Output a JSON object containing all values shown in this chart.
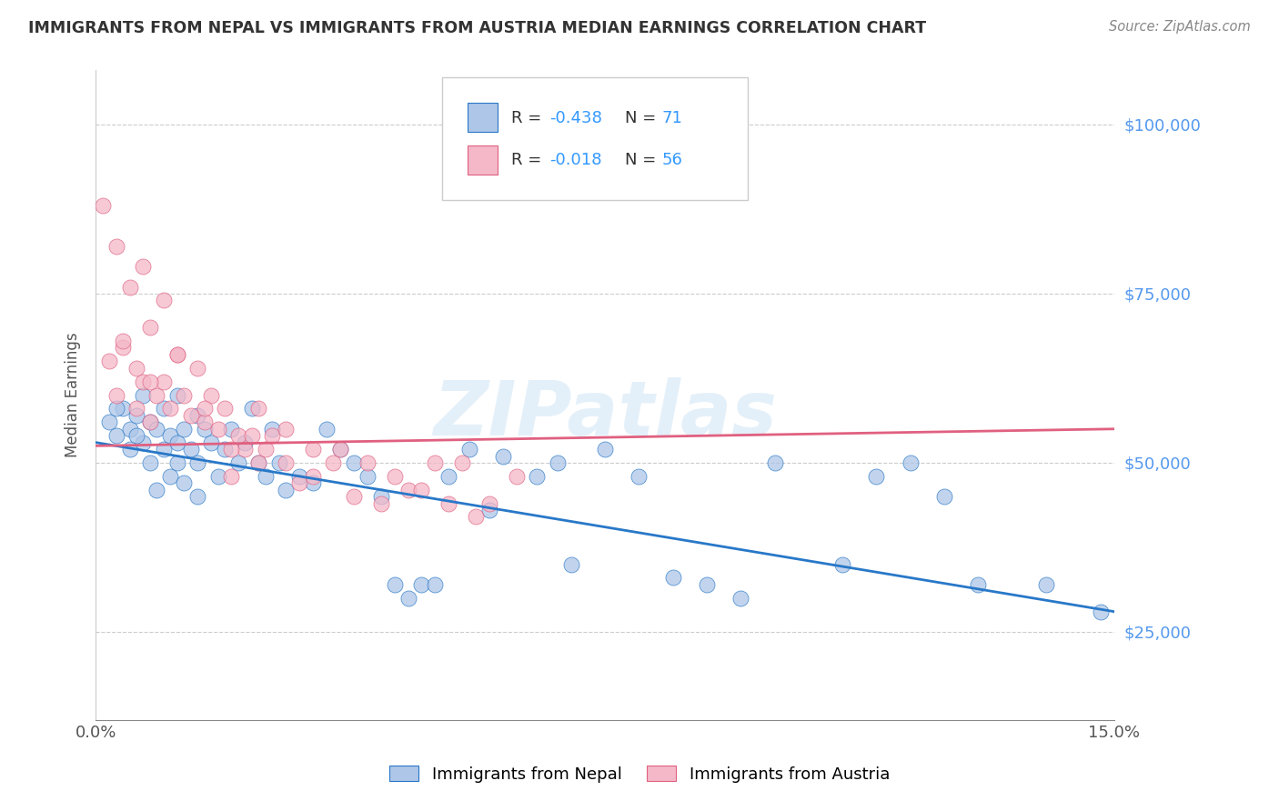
{
  "title": "IMMIGRANTS FROM NEPAL VS IMMIGRANTS FROM AUSTRIA MEDIAN EARNINGS CORRELATION CHART",
  "source": "Source: ZipAtlas.com",
  "ylabel": "Median Earnings",
  "ytick_labels": [
    "$25,000",
    "$50,000",
    "$75,000",
    "$100,000"
  ],
  "ytick_values": [
    25000,
    50000,
    75000,
    100000
  ],
  "ylim": [
    12000,
    108000
  ],
  "xlim": [
    0.0,
    0.15
  ],
  "watermark": "ZIPatlas",
  "legend_r_nepal": "-0.438",
  "legend_n_nepal": "71",
  "legend_r_austria": "-0.018",
  "legend_n_austria": "56",
  "nepal_color": "#aec6e8",
  "austria_color": "#f4b8c8",
  "nepal_line_color": "#2878c8",
  "austria_line_color": "#e06080",
  "title_color": "#333333",
  "source_color": "#888888",
  "legend_text_color": "#333333",
  "legend_num_color": "#3399ff",
  "nepal_scatter_x": [
    0.002,
    0.003,
    0.004,
    0.005,
    0.005,
    0.006,
    0.007,
    0.007,
    0.008,
    0.008,
    0.009,
    0.01,
    0.01,
    0.011,
    0.011,
    0.012,
    0.012,
    0.013,
    0.013,
    0.014,
    0.015,
    0.015,
    0.016,
    0.017,
    0.018,
    0.019,
    0.02,
    0.021,
    0.022,
    0.023,
    0.024,
    0.025,
    0.026,
    0.027,
    0.028,
    0.03,
    0.032,
    0.034,
    0.036,
    0.038,
    0.04,
    0.042,
    0.044,
    0.046,
    0.048,
    0.05,
    0.052,
    0.055,
    0.058,
    0.06,
    0.065,
    0.068,
    0.07,
    0.075,
    0.08,
    0.085,
    0.09,
    0.095,
    0.1,
    0.11,
    0.115,
    0.12,
    0.125,
    0.13,
    0.14,
    0.148,
    0.003,
    0.006,
    0.009,
    0.012,
    0.015
  ],
  "nepal_scatter_y": [
    56000,
    54000,
    58000,
    55000,
    52000,
    57000,
    53000,
    60000,
    56000,
    50000,
    55000,
    58000,
    52000,
    54000,
    48000,
    60000,
    53000,
    55000,
    47000,
    52000,
    57000,
    50000,
    55000,
    53000,
    48000,
    52000,
    55000,
    50000,
    53000,
    58000,
    50000,
    48000,
    55000,
    50000,
    46000,
    48000,
    47000,
    55000,
    52000,
    50000,
    48000,
    45000,
    32000,
    30000,
    32000,
    32000,
    48000,
    52000,
    43000,
    51000,
    48000,
    50000,
    35000,
    52000,
    48000,
    33000,
    32000,
    30000,
    50000,
    35000,
    48000,
    50000,
    45000,
    32000,
    32000,
    28000,
    58000,
    54000,
    46000,
    50000,
    45000
  ],
  "austria_scatter_x": [
    0.001,
    0.002,
    0.003,
    0.003,
    0.004,
    0.005,
    0.006,
    0.006,
    0.007,
    0.007,
    0.008,
    0.008,
    0.009,
    0.01,
    0.01,
    0.011,
    0.012,
    0.013,
    0.014,
    0.015,
    0.016,
    0.017,
    0.018,
    0.019,
    0.02,
    0.021,
    0.022,
    0.023,
    0.024,
    0.025,
    0.026,
    0.028,
    0.03,
    0.032,
    0.035,
    0.038,
    0.042,
    0.046,
    0.05,
    0.054,
    0.058,
    0.062,
    0.004,
    0.008,
    0.012,
    0.016,
    0.02,
    0.024,
    0.028,
    0.032,
    0.036,
    0.04,
    0.044,
    0.048,
    0.052,
    0.056
  ],
  "austria_scatter_y": [
    88000,
    65000,
    60000,
    82000,
    67000,
    76000,
    64000,
    58000,
    79000,
    62000,
    56000,
    70000,
    60000,
    62000,
    74000,
    58000,
    66000,
    60000,
    57000,
    64000,
    56000,
    60000,
    55000,
    58000,
    48000,
    54000,
    52000,
    54000,
    50000,
    52000,
    54000,
    50000,
    47000,
    48000,
    50000,
    45000,
    44000,
    46000,
    50000,
    50000,
    44000,
    48000,
    68000,
    62000,
    66000,
    58000,
    52000,
    58000,
    55000,
    52000,
    52000,
    50000,
    48000,
    46000,
    44000,
    42000
  ],
  "nepal_trend_x": [
    0.0,
    0.15
  ],
  "nepal_trend_y": [
    53000,
    28000
  ],
  "austria_trend_x": [
    0.0,
    0.15
  ],
  "austria_trend_y": [
    52500,
    55000
  ]
}
